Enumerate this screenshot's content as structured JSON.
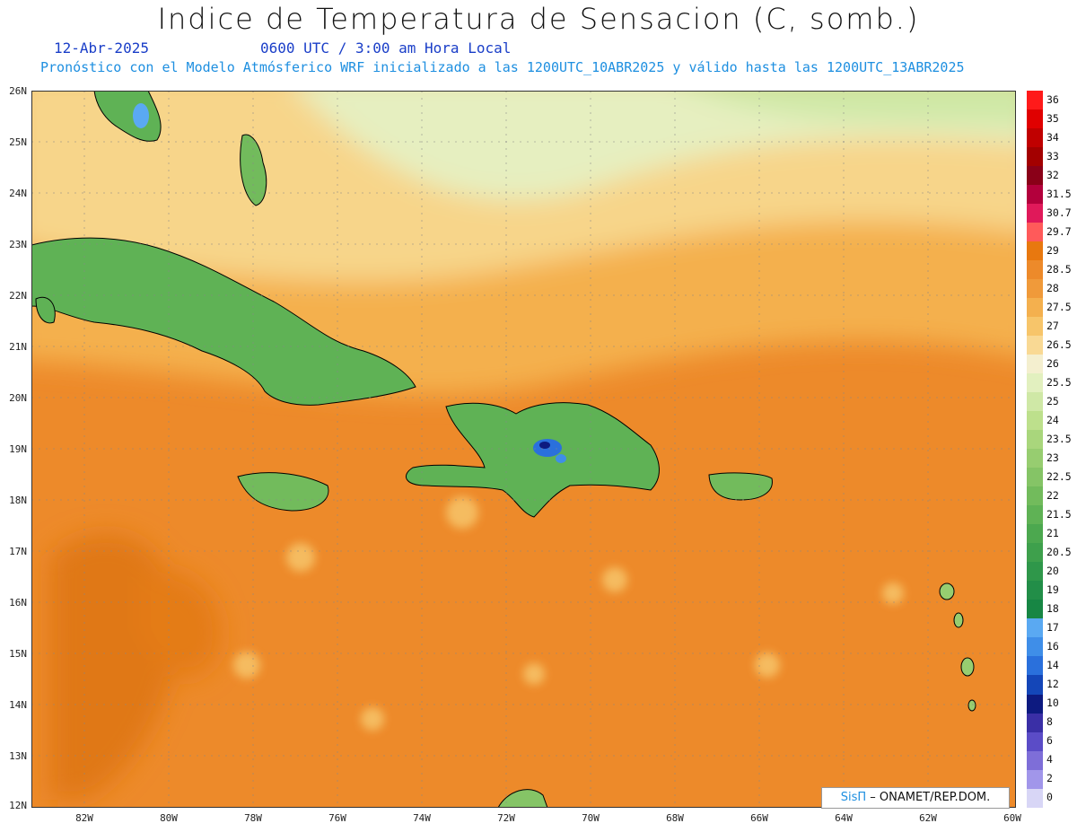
{
  "header": {
    "title": "Indice de Temperatura de Sensacion (C, somb.)",
    "date": "12-Abr-2025",
    "time": "0600 UTC / 3:00 am Hora Local",
    "model_note": "Pronóstico con el Modelo Atmósferico WRF inicializado a las 1200UTC_10ABR2025 y válido hasta las  1200UTC_13ABR2025"
  },
  "axes": {
    "lat_labels": [
      "26N",
      "25N",
      "24N",
      "23N",
      "22N",
      "21N",
      "20N",
      "19N",
      "18N",
      "17N",
      "16N",
      "15N",
      "14N",
      "13N",
      "12N"
    ],
    "lon_labels": [
      "82W",
      "80W",
      "78W",
      "76W",
      "74W",
      "72W",
      "70W",
      "68W",
      "66W",
      "64W",
      "62W",
      "60W"
    ]
  },
  "colorbar": {
    "labels": [
      "36",
      "35",
      "34",
      "33",
      "32",
      "31.5",
      "30.7",
      "29.7",
      "29",
      "28.5",
      "28",
      "27.5",
      "27",
      "26.5",
      "26",
      "25.5",
      "25",
      "24",
      "23.5",
      "23",
      "22.5",
      "22",
      "21.5",
      "21",
      "20.5",
      "20",
      "19",
      "18",
      "17",
      "16",
      "14",
      "12",
      "10",
      "8",
      "6",
      "4",
      "2",
      "0"
    ],
    "colors": [
      "#ff1a1a",
      "#e00000",
      "#c00000",
      "#a30000",
      "#8a0018",
      "#b3003c",
      "#e0195a",
      "#ff5a5a",
      "#e8780f",
      "#ed8a2a",
      "#f09a3a",
      "#f4b04e",
      "#f7c56a",
      "#f9d994",
      "#f4efcf",
      "#e2f0bf",
      "#cfe8a6",
      "#bde08c",
      "#a9d67c",
      "#97cd70",
      "#85c466",
      "#72bb5c",
      "#5fb255",
      "#4ca84f",
      "#3ea04c",
      "#2f974a",
      "#228e48",
      "#178644",
      "#5aa9f2",
      "#3f8ee8",
      "#2a70dc",
      "#1446b8",
      "#0d1a80",
      "#3a2fa6",
      "#5b4cc7",
      "#7e6ed8",
      "#a196ea",
      "#d8d6f6"
    ]
  },
  "credit": {
    "logo": "SisΠ",
    "text": "– ONAMET/REP.DOM."
  }
}
